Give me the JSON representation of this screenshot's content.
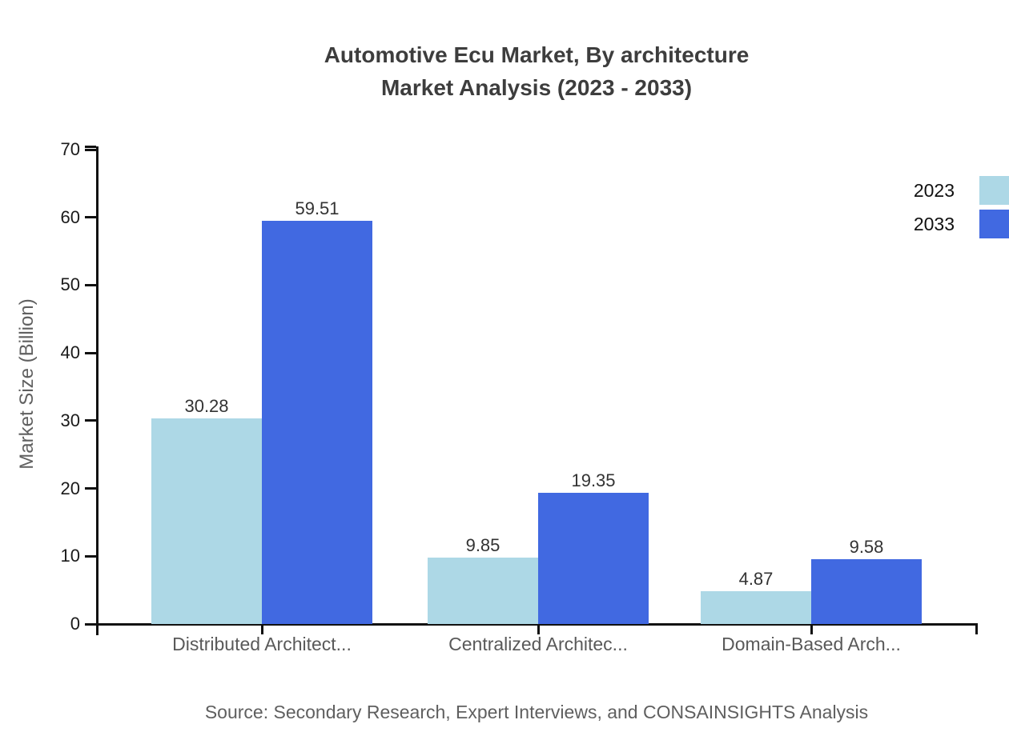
{
  "title": {
    "line1": "Automotive Ecu Market, By architecture",
    "line2": "Market Analysis (2023 - 2033)"
  },
  "source_note": "Source: Secondary Research, Expert Interviews, and CONSAINSIGHTS Analysis",
  "chart_data": {
    "type": "bar",
    "title": "Automotive Ecu Market, By architecture Market Analysis (2023 - 2033)",
    "categories": [
      "Distributed Architect...",
      "Centralized Architec...",
      "Domain-Based Arch..."
    ],
    "series": [
      {
        "name": "2023",
        "color": "#ADD8E6",
        "values": [
          30.28,
          9.85,
          4.87
        ]
      },
      {
        "name": "2033",
        "color": "#4169E1",
        "values": [
          59.51,
          19.35,
          9.58
        ]
      }
    ],
    "xlabel": "",
    "ylabel": "Market Size (Billion)",
    "ylim": [
      0,
      70
    ],
    "yticks": [
      0,
      10,
      20,
      30,
      40,
      50,
      60,
      70
    ],
    "grid": false,
    "legend_position": "top-right",
    "value_labels": true,
    "value_label_format": "0.00",
    "axis_color": "#111111",
    "text_color": "#3d3d3d"
  }
}
